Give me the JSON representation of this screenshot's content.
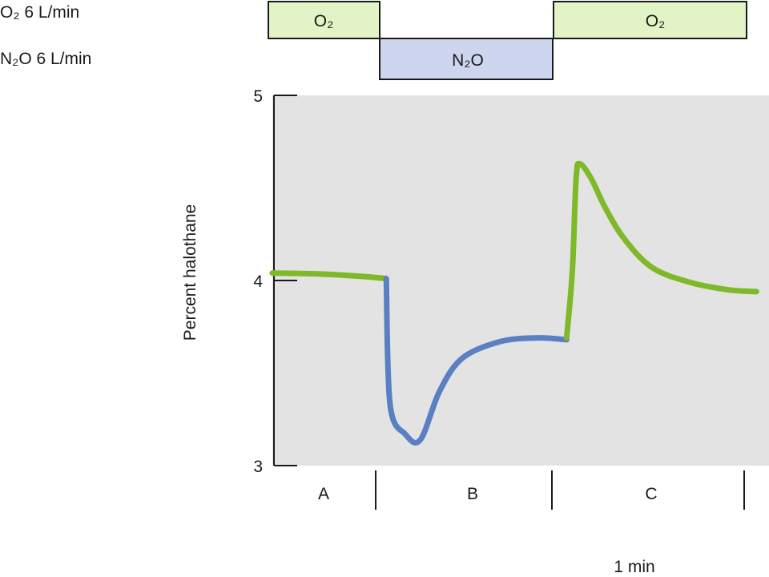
{
  "chart_data": {
    "type": "line",
    "ylabel": "Percent halothane",
    "ylim": [
      3,
      5
    ],
    "yticks": [
      "3",
      "4",
      "5"
    ],
    "grid": false,
    "flow_legend": [
      {
        "name": "O₂ 6 L/min",
        "gas": "O₂",
        "color": "#e2f3c6"
      },
      {
        "name": "N₂O 6 L/min",
        "gas": "N₂O",
        "color": "#cdd5ef"
      }
    ],
    "phases": [
      {
        "label": "A",
        "gas_box": null
      },
      {
        "label": "B",
        "gas_box": "N₂O"
      },
      {
        "label": "C",
        "gas_box": "O₂"
      }
    ],
    "first_o2_box": "O₂",
    "time_scale_label": "1 min",
    "x_unit": "min",
    "series": [
      {
        "color": "#7db928",
        "segment": "A",
        "x": [
          0,
          0.25,
          0.5,
          0.6
        ],
        "y": [
          4.04,
          4.035,
          4.02,
          4.01
        ]
      },
      {
        "color": "#5a7fc3",
        "segment": "B",
        "x": [
          0.6,
          0.62,
          0.7,
          0.78,
          0.88,
          1.0,
          1.2,
          1.4,
          1.55
        ],
        "y": [
          4.01,
          3.33,
          3.17,
          3.14,
          3.4,
          3.58,
          3.67,
          3.69,
          3.68
        ]
      },
      {
        "color": "#7db928",
        "segment": "C",
        "x": [
          1.55,
          1.58,
          1.6,
          1.62,
          1.68,
          1.75,
          1.85,
          2.0,
          2.2,
          2.4,
          2.55
        ],
        "y": [
          3.69,
          4.05,
          4.55,
          4.63,
          4.55,
          4.4,
          4.23,
          4.07,
          3.99,
          3.95,
          3.94
        ]
      }
    ]
  }
}
